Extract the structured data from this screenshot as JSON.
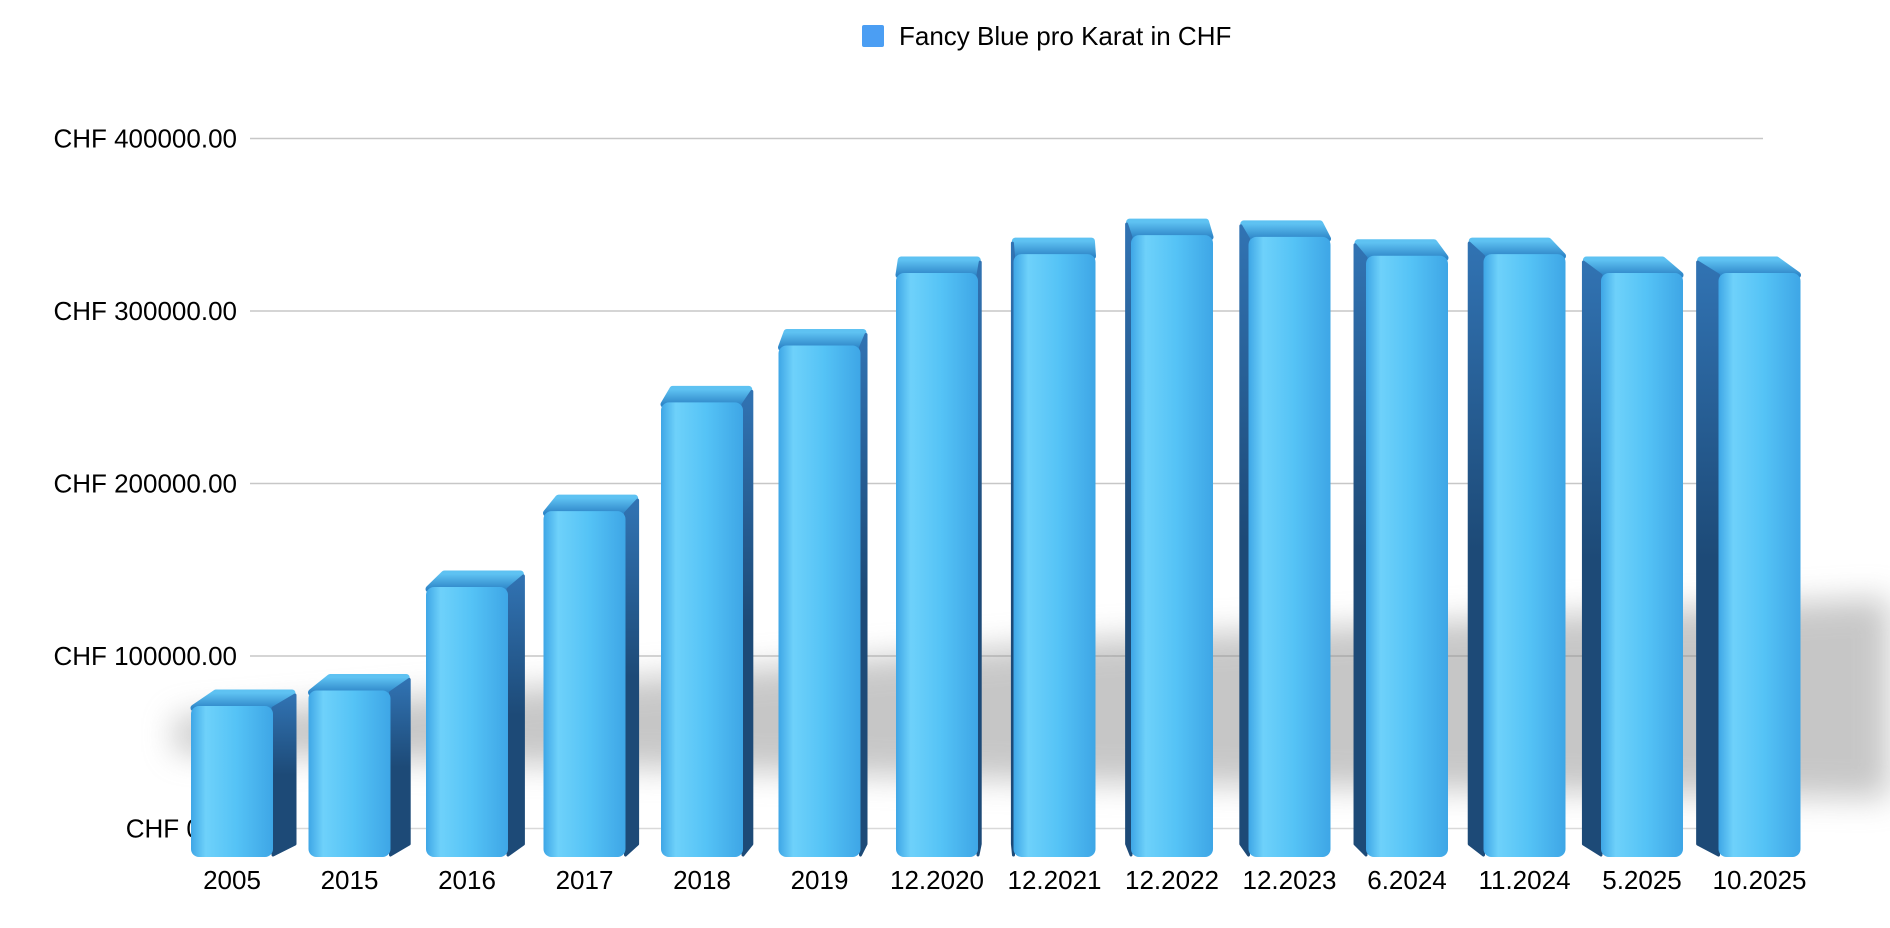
{
  "page": {
    "background": "#ffffff"
  },
  "legend": {
    "position": "top-center"
  },
  "chart_data": {
    "type": "bar",
    "style": "3d-perspective",
    "title": "",
    "legend": [
      "Fancy Blue pro Karat in CHF"
    ],
    "legend_position": "top-center",
    "categories": [
      "2005",
      "2015",
      "2016",
      "2017",
      "2018",
      "2019",
      "12.2020",
      "12.2021",
      "12.2022",
      "12.2023",
      "6.2024",
      "11.2024",
      "5.2025",
      "10.2025"
    ],
    "series": [
      {
        "name": "Fancy Blue pro Karat in CHF",
        "values": [
          71000,
          80000,
          140000,
          184000,
          247000,
          280000,
          322000,
          333000,
          344000,
          343000,
          332000,
          333000,
          322000,
          322000
        ]
      }
    ],
    "xlabel": "",
    "ylabel": "",
    "y_axis": {
      "min": 0,
      "max": 400000,
      "tick_step": 100000,
      "currency": "CHF",
      "ticks": [
        {
          "value": 0,
          "label": "CHF 0.00"
        },
        {
          "value": 100000,
          "label": "CHF 100000.00"
        },
        {
          "value": 200000,
          "label": "CHF 200000.00"
        },
        {
          "value": 300000,
          "label": "CHF 300000.00"
        },
        {
          "value": 400000,
          "label": "CHF 400000.00"
        }
      ]
    },
    "grid": "horizontal-lines-on",
    "colors": {
      "legend_swatch": "#4b9ef3",
      "bar_front_light": "#6ed1fa",
      "bar_front_mid": "#55c3f6",
      "bar_front_dark": "#3ea6e6",
      "bar_side_dark": "#1d4a77",
      "bar_side_light": "#3173b3",
      "bar_top_light": "#5ec2f2",
      "bar_top_dark": "#2e86c8",
      "gridline": "#c7c7c7",
      "baseline": "#d9d9d9",
      "shadow": "#8f8f8f",
      "text": "#000000"
    }
  }
}
